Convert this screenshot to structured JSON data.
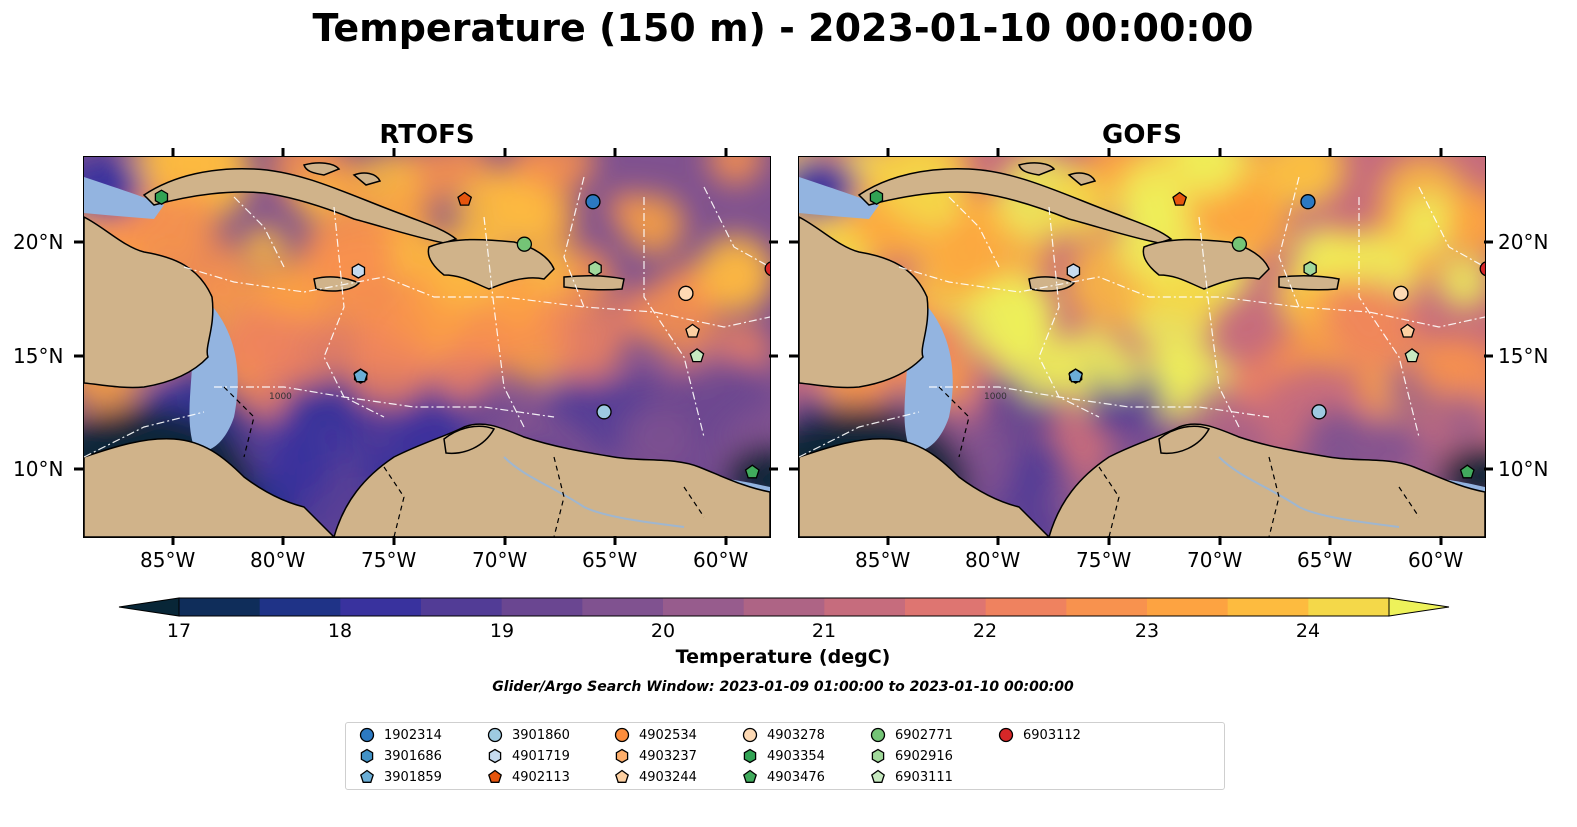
{
  "title": "Temperature (150 m) - 2023-01-10 00:00:00",
  "panels": [
    {
      "id": "rtofs",
      "title": "RTOFS"
    },
    {
      "id": "gofs",
      "title": "GOFS"
    }
  ],
  "map": {
    "lon_range": [
      -89,
      -58
    ],
    "lat_range": [
      7,
      24
    ],
    "lon_ticks": [
      "85°W",
      "80°W",
      "75°W",
      "70°W",
      "65°W",
      "60°W"
    ],
    "lat_ticks": [
      "20°N",
      "15°N",
      "10°N"
    ],
    "land_color": "#d0b38a",
    "shelf_color": "#93b4e0",
    "coast_color": "#000000",
    "eez_color": "#ffffff",
    "contour_labels": [
      "1000"
    ]
  },
  "colorbar": {
    "label": "Temperature (degC)",
    "vmin": 16.5,
    "vmax": 24.5,
    "ticks": [
      "17",
      "18",
      "19",
      "20",
      "21",
      "22",
      "23",
      "24"
    ],
    "colors": [
      "#082637",
      "#0f2d5a",
      "#1f3387",
      "#39329e",
      "#523c96",
      "#6a4691",
      "#805290",
      "#975c8d",
      "#ae6485",
      "#c66c7d",
      "#de7571",
      "#ef825f",
      "#f8924e",
      "#fda341",
      "#fdbb3f",
      "#f4d849",
      "#eef25a"
    ]
  },
  "search_window": "Glider/Argo Search Window: 2023-01-09 01:00:00 to 2023-01-10 00:00:00",
  "floats": [
    {
      "id": "1902314",
      "marker": "circle",
      "color": "#2c79c2",
      "lon": -66.0,
      "lat": 22.0
    },
    {
      "id": "3901686",
      "marker": "hexagon",
      "color": "#4292c6",
      "lon": -76.5,
      "lat": 14.2
    },
    {
      "id": "3901859",
      "marker": "pentagon",
      "color": "#6baed6",
      "lon": -76.5,
      "lat": 14.2
    },
    {
      "id": "3901860",
      "marker": "circle",
      "color": "#9ecae1",
      "lon": -65.5,
      "lat": 12.6
    },
    {
      "id": "4901719",
      "marker": "hexagon",
      "color": "#c6dbef",
      "lon": -76.6,
      "lat": 18.9
    },
    {
      "id": "4902113",
      "marker": "pentagon",
      "color": "#e6550d",
      "lon": -71.8,
      "lat": 22.1
    },
    {
      "id": "4902534",
      "marker": "circle",
      "color": "#fd8d3c",
      "lon": -61.8,
      "lat": 17.9
    },
    {
      "id": "4903237",
      "marker": "hexagon",
      "color": "#fdae6b",
      "lon": -61.8,
      "lat": 17.9
    },
    {
      "id": "4903244",
      "marker": "pentagon",
      "color": "#fdd0a2",
      "lon": -61.5,
      "lat": 16.2
    },
    {
      "id": "4903278",
      "marker": "circle",
      "color": "#fdd9b4",
      "lon": -61.8,
      "lat": 17.9
    },
    {
      "id": "4903354",
      "marker": "hexagon",
      "color": "#31a354",
      "lon": -85.5,
      "lat": 22.2
    },
    {
      "id": "4903476",
      "marker": "pentagon",
      "color": "#41ab5d",
      "lon": -58.8,
      "lat": 9.9
    },
    {
      "id": "6902771",
      "marker": "circle",
      "color": "#74c476",
      "lon": -69.1,
      "lat": 20.1
    },
    {
      "id": "6902916",
      "marker": "hexagon",
      "color": "#a1d99b",
      "lon": -65.9,
      "lat": 19.0
    },
    {
      "id": "6903111",
      "marker": "pentagon",
      "color": "#c7e9c0",
      "lon": -61.3,
      "lat": 15.1
    },
    {
      "id": "6903112",
      "marker": "circle",
      "color": "#d62728",
      "lon": -57.9,
      "lat": 19.0
    }
  ]
}
